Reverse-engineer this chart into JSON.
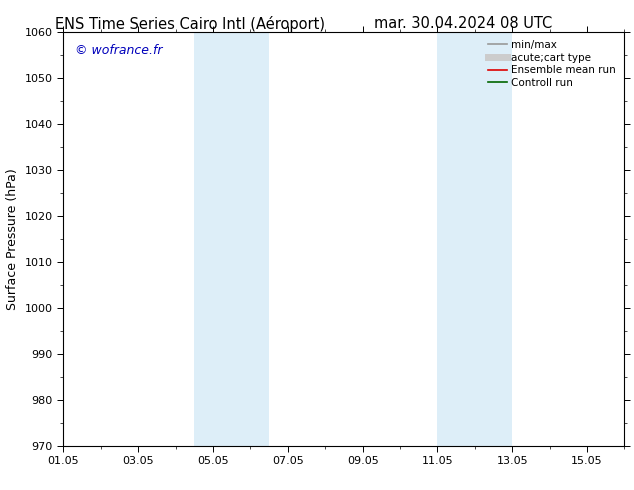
{
  "title_left": "ENS Time Series Cairo Intl (Aéroport)",
  "title_right": "mar. 30.04.2024 08 UTC",
  "ylabel": "Surface Pressure (hPa)",
  "ylim": [
    970,
    1060
  ],
  "yticks": [
    970,
    980,
    990,
    1000,
    1010,
    1020,
    1030,
    1040,
    1050,
    1060
  ],
  "xlim": [
    0,
    15
  ],
  "xtick_labels": [
    "01.05",
    "03.05",
    "05.05",
    "07.05",
    "09.05",
    "11.05",
    "13.05",
    "15.05"
  ],
  "xtick_positions": [
    0,
    2,
    4,
    6,
    8,
    10,
    12,
    14
  ],
  "shaded_regions": [
    {
      "x_start": 3.5,
      "x_end": 4.5,
      "color": "#ddeef8"
    },
    {
      "x_start": 4.5,
      "x_end": 5.5,
      "color": "#ddeef8"
    },
    {
      "x_start": 10.0,
      "x_end": 11.0,
      "color": "#ddeef8"
    },
    {
      "x_start": 11.0,
      "x_end": 12.0,
      "color": "#ddeef8"
    }
  ],
  "watermark": "© wofrance.fr",
  "watermark_color": "#0000bb",
  "legend_entries": [
    {
      "label": "min/max",
      "color": "#999999",
      "lw": 1.2,
      "linestyle": "-"
    },
    {
      "label": "acute;cart type",
      "color": "#cccccc",
      "lw": 5,
      "linestyle": "-"
    },
    {
      "label": "Ensemble mean run",
      "color": "#dd0000",
      "lw": 1.2,
      "linestyle": "-"
    },
    {
      "label": "Controll run",
      "color": "#006600",
      "lw": 1.2,
      "linestyle": "-"
    }
  ],
  "bg_color": "#ffffff",
  "title_fontsize": 10.5,
  "axis_label_fontsize": 9,
  "tick_fontsize": 8,
  "watermark_fontsize": 9,
  "legend_fontsize": 7.5
}
